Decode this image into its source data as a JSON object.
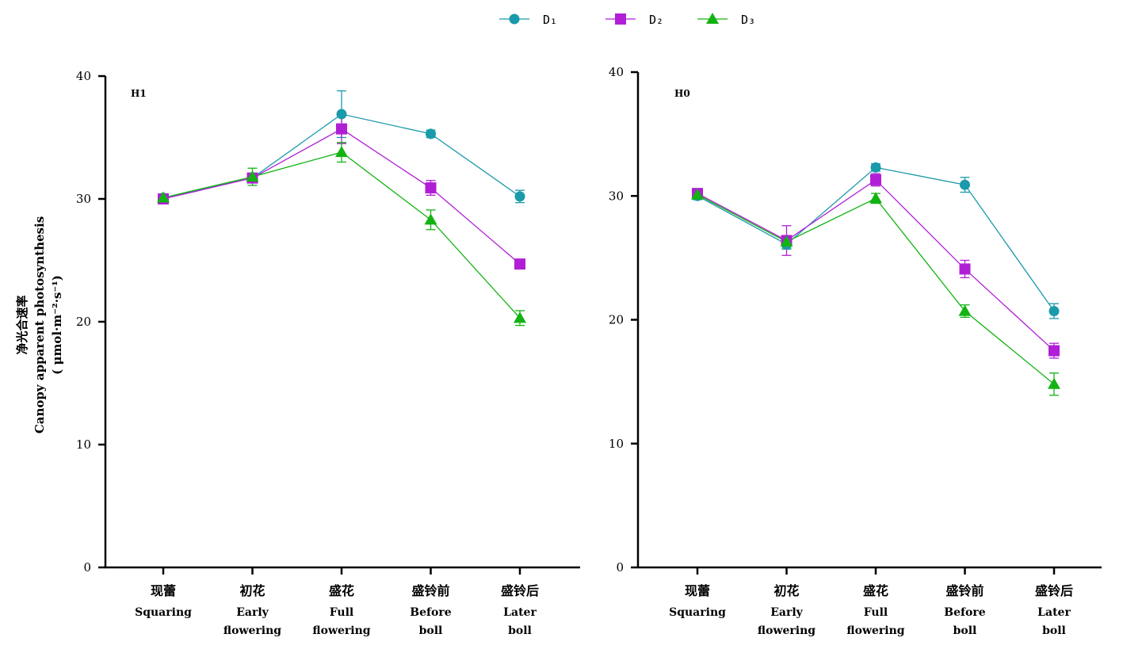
{
  "chart_data": [
    {
      "type": "line",
      "title": "",
      "panel_label": "H1",
      "ylabel_lines": [
        "净光合速率",
        "Canopy apparent photosynthesis",
        "(  μmol·m⁻²·s⁻¹)"
      ],
      "ylim": [
        0,
        40
      ],
      "yticks": [
        "0",
        "10",
        "20",
        "30",
        "40"
      ],
      "categories": [
        {
          "cn": "现蕾",
          "en": [
            "Squaring"
          ]
        },
        {
          "cn": "初花",
          "en": [
            "Early",
            "flowering"
          ]
        },
        {
          "cn": "盛花",
          "en": [
            "Full",
            "flowering"
          ]
        },
        {
          "cn": "盛铃前",
          "en": [
            "Before",
            "boll"
          ]
        },
        {
          "cn": "盛铃后",
          "en": [
            "Later",
            "boll"
          ]
        }
      ],
      "series": [
        {
          "name": "D₁",
          "marker": "circle",
          "color": "#1a9aaa",
          "values": [
            30.1,
            31.7,
            36.9,
            35.3,
            30.2
          ],
          "errors": [
            0.3,
            0.3,
            1.9,
            0.3,
            0.5
          ]
        },
        {
          "name": "D₂",
          "marker": "square",
          "color": "#b01fd6",
          "values": [
            30.0,
            31.7,
            35.7,
            30.9,
            24.7
          ],
          "errors": [
            0.3,
            0.3,
            1.2,
            0.6,
            0.3
          ]
        },
        {
          "name": "D₃",
          "marker": "triangle",
          "color": "#12b312",
          "values": [
            30.1,
            31.8,
            33.8,
            28.3,
            20.3
          ],
          "errors": [
            0.3,
            0.7,
            0.8,
            0.8,
            0.6
          ]
        }
      ],
      "grid": false,
      "legend": "top-center"
    },
    {
      "type": "line",
      "title": "",
      "panel_label": "H0",
      "ylim": [
        0,
        40
      ],
      "yticks": [
        "0",
        "10",
        "20",
        "30",
        "40"
      ],
      "categories": [
        {
          "cn": "现蕾",
          "en": [
            "Squaring"
          ]
        },
        {
          "cn": "初花",
          "en": [
            "Early",
            "flowering"
          ]
        },
        {
          "cn": "盛花",
          "en": [
            "Full",
            "flowering"
          ]
        },
        {
          "cn": "盛铃前",
          "en": [
            "Before",
            "boll"
          ]
        },
        {
          "cn": "盛铃后",
          "en": [
            "Later",
            "boll"
          ]
        }
      ],
      "series": [
        {
          "name": "D₁",
          "marker": "circle",
          "color": "#1a9aaa",
          "values": [
            30.0,
            26.1,
            32.3,
            30.9,
            20.7
          ],
          "errors": [
            0.3,
            0.4,
            0.3,
            0.6,
            0.6
          ]
        },
        {
          "name": "D₂",
          "marker": "square",
          "color": "#b01fd6",
          "values": [
            30.2,
            26.4,
            31.3,
            24.1,
            17.5
          ],
          "errors": [
            0.3,
            1.2,
            0.5,
            0.7,
            0.6
          ]
        },
        {
          "name": "D₃",
          "marker": "triangle",
          "color": "#12b312",
          "values": [
            30.1,
            26.3,
            29.8,
            20.7,
            14.8
          ],
          "errors": [
            0.3,
            0.5,
            0.4,
            0.5,
            0.9
          ]
        }
      ],
      "grid": false,
      "legend": "top-center"
    }
  ]
}
